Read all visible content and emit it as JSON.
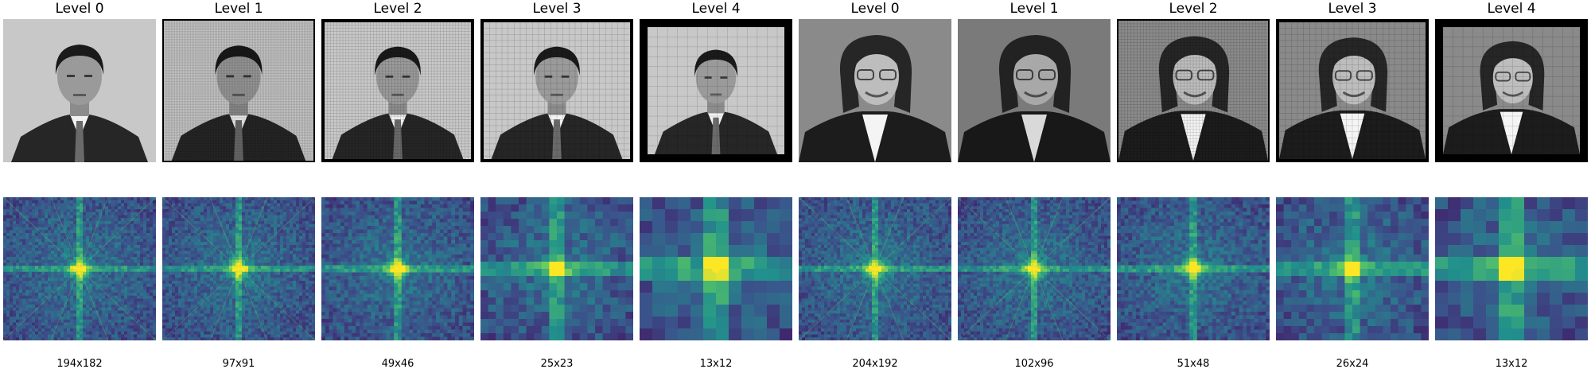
{
  "panels": [
    {
      "title": "Level 0",
      "size": "194x182",
      "subject": "man",
      "frame": "none"
    },
    {
      "title": "Level 1",
      "size": "97x91",
      "subject": "man",
      "frame": "thin"
    },
    {
      "title": "Level 2",
      "size": "49x46",
      "subject": "man",
      "frame": "medium"
    },
    {
      "title": "Level 3",
      "size": "25x23",
      "subject": "man",
      "frame": "medium"
    },
    {
      "title": "Level 4",
      "size": "13x12",
      "subject": "man",
      "frame": "thick"
    },
    {
      "title": "Level 0",
      "size": "204x192",
      "subject": "woman",
      "frame": "none"
    },
    {
      "title": "Level 1",
      "size": "102x96",
      "subject": "woman",
      "frame": "none"
    },
    {
      "title": "Level 2",
      "size": "51x48",
      "subject": "woman",
      "frame": "thin"
    },
    {
      "title": "Level 3",
      "size": "26x24",
      "subject": "woman",
      "frame": "medium"
    },
    {
      "title": "Level 4",
      "size": "13x12",
      "subject": "woman",
      "frame": "thick"
    }
  ],
  "colors": {
    "viridis_low": "#3b528b",
    "viridis_mid": "#21918c",
    "viridis_high": "#5ec962",
    "viridis_peak": "#fde725",
    "photo_bg_man": "#c8c8c8",
    "photo_bg_woman": "#8a8a8a",
    "frame": "#000000"
  }
}
